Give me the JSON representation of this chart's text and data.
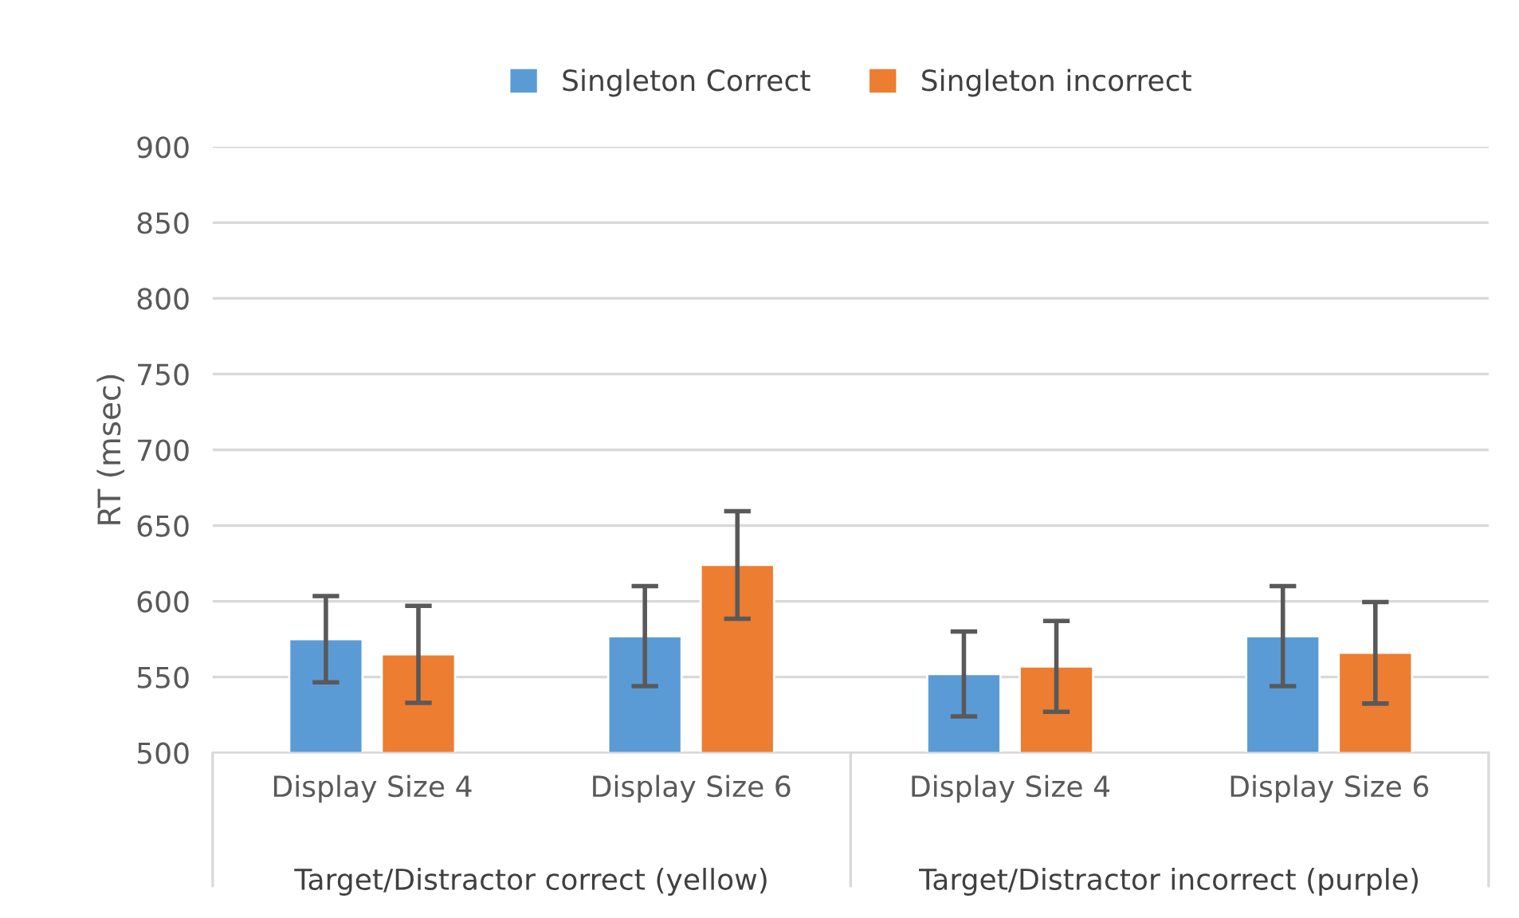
{
  "chart_data": {
    "type": "bar",
    "ylabel": "RT (msec)",
    "categories": [
      "Display Size 4",
      "Display Size 6",
      "Display Size 4",
      "Display Size 6"
    ],
    "series": [
      {
        "name": "Singleton Correct",
        "color": "#5b9bd5",
        "values": [
          575,
          577,
          552,
          577
        ],
        "errors": [
          28.5,
          33,
          28,
          33
        ]
      },
      {
        "name": "Singleton incorrect",
        "color": "#ed7d31",
        "values": [
          565,
          624,
          557,
          566
        ],
        "errors": [
          32,
          35.5,
          30,
          33.5
        ]
      }
    ],
    "annotations": [
      "Target/Distractor correct (yellow)",
      "Target/Distractor incorrect (purple)"
    ],
    "ylim": [
      500,
      900
    ],
    "yticks": [
      500,
      550,
      600,
      650,
      700,
      750,
      800,
      850,
      900
    ],
    "grid": "y",
    "legend": "top"
  }
}
